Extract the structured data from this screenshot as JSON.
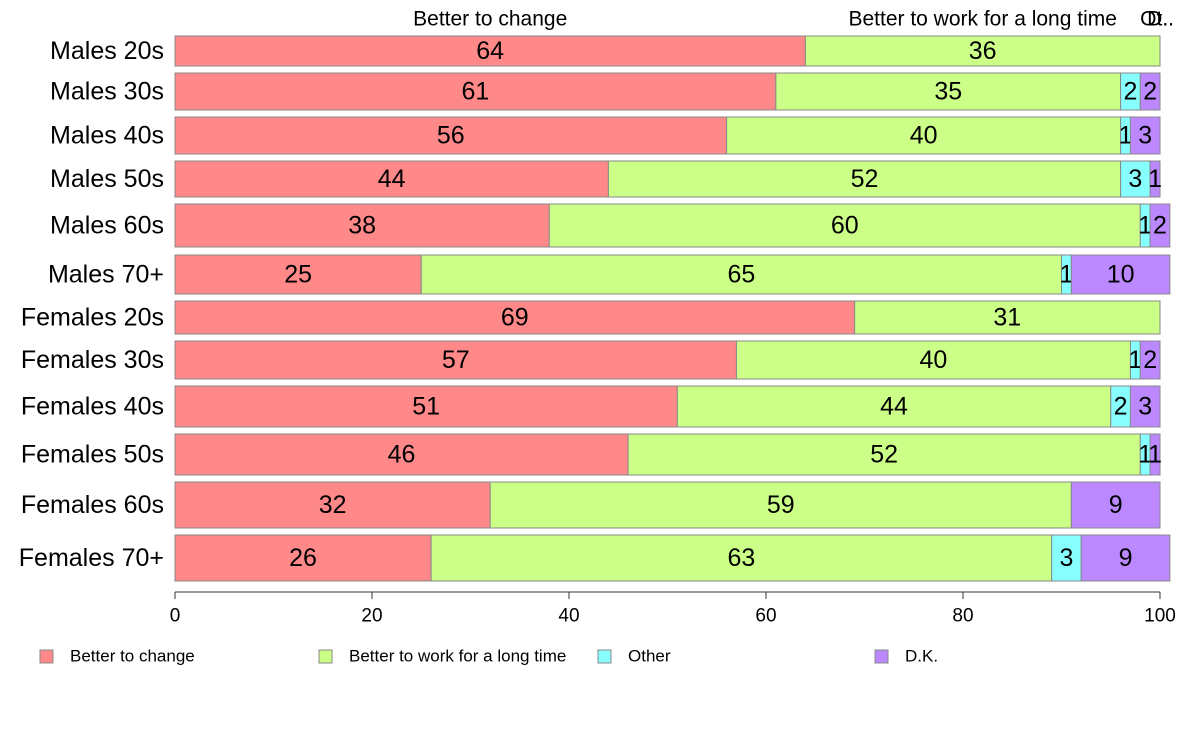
{
  "chart_data": {
    "type": "bar",
    "orientation": "horizontal",
    "stacked": true,
    "categories": [
      "Males 20s",
      "Males 30s",
      "Males 40s",
      "Males 50s",
      "Males 60s",
      "Males 70+",
      "Females 20s",
      "Females 30s",
      "Females 40s",
      "Females 50s",
      "Females 60s",
      "Females 70+"
    ],
    "series": [
      {
        "name": "Better to change",
        "color": "#FF8888",
        "values": [
          64,
          61,
          56,
          44,
          38,
          25,
          69,
          57,
          51,
          46,
          32,
          26
        ]
      },
      {
        "name": "Better to work for a long time",
        "color": "#CCFF88",
        "values": [
          36,
          35,
          40,
          52,
          60,
          65,
          31,
          40,
          44,
          52,
          59,
          63
        ]
      },
      {
        "name": "Other",
        "color": "#88FFFF",
        "values": [
          0,
          2,
          1,
          3,
          1,
          1,
          0,
          1,
          2,
          1,
          0,
          3
        ]
      },
      {
        "name": "D.K.",
        "color": "#BB88FF",
        "values": [
          0,
          2,
          3,
          1,
          2,
          10,
          0,
          2,
          3,
          1,
          9,
          9
        ]
      }
    ],
    "top_labels": [
      "Better to change",
      "Better to work for a long time",
      "Ot..",
      "D.."
    ],
    "xlim": [
      0,
      100
    ],
    "xticks": [
      "0",
      "20",
      "40",
      "60",
      "80",
      "100"
    ],
    "legend_position": "bottom",
    "grid": false
  }
}
